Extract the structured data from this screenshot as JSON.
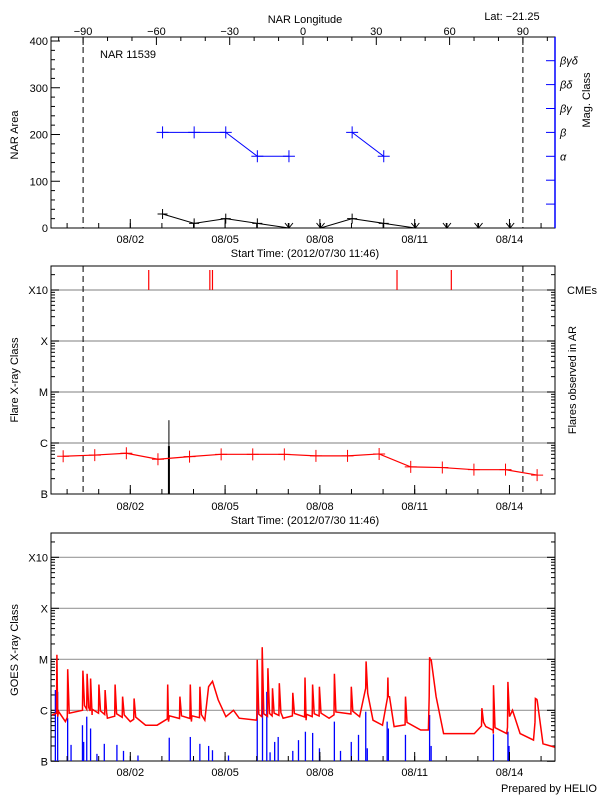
{
  "colors": {
    "area": "#000000",
    "mag_class": "#0000ff",
    "flare": "#ff0000",
    "cme": "#ff0000",
    "goes_flux": "#ff0000",
    "goes_events": "#0000ff",
    "grid": "#999999",
    "limb": "#000000"
  },
  "header": {
    "lat_label": "Lat: −21.25",
    "region_title": "NAR 11539",
    "credit": "Prepared by HELIO"
  },
  "time_axis": {
    "xlabel": "Start Time: (2012/07/30 11:46)",
    "xlim": [
      "07/30 11:46",
      "08/15 10:35"
    ],
    "ticks": [
      "08/02",
      "08/05",
      "08/08",
      "08/11",
      "08/14"
    ]
  },
  "chart_data": [
    {
      "type": "line",
      "title": "NAR 11539",
      "xlabel": "Start Time: (2012/07/30 11:46)",
      "ylabel": "NAR Area",
      "ylim": [
        0,
        400
      ],
      "yticks": [
        "0",
        "100",
        "200",
        "300",
        "400"
      ],
      "top_axis": {
        "label": "NAR Longitude",
        "ticks": [
          "−90",
          "−60",
          "−30",
          "0",
          "30",
          "60",
          "90"
        ],
        "tick_values": [
          -90,
          -60,
          -30,
          0,
          30,
          60,
          90
        ],
        "limb_longitudes": [
          -90,
          90
        ]
      },
      "area": {
        "x": [
          "08/03 00:30",
          "08/04 00:30",
          "08/05 00:30",
          "08/06 00:30",
          "08/07 00:30",
          "08/08 00:30",
          "08/09 00:30",
          "08/10 00:30",
          "08/11 00:30",
          "08/12 00:30",
          "08/13 00:30",
          "08/14 00:30"
        ],
        "values": [
          30,
          10,
          20,
          10,
          0,
          0,
          20,
          10,
          0,
          0,
          0,
          0
        ]
      },
      "mag_class": {
        "y2label": "Mag. Class",
        "levels": [
          "α",
          "β",
          "βγ",
          "βδ",
          "βγδ"
        ],
        "segments": [
          {
            "x": [
              "08/03 00:30",
              "08/04 00:30",
              "08/05 00:30",
              "08/06 00:30",
              "08/07 00:30"
            ],
            "values": [
              "β",
              "β",
              "β",
              "α",
              "α"
            ]
          },
          {
            "x": [
              "08/09 00:30",
              "08/10 00:30"
            ],
            "values": [
              "β",
              "α"
            ]
          }
        ]
      }
    },
    {
      "type": "line",
      "xlabel": "Start Time: (2012/07/30 11:46)",
      "ylabel": "Flare X-ray Class",
      "y2label": "Flares observed in AR",
      "yscale": "log",
      "ylim": [
        1e-07,
        0.003
      ],
      "yticks": [
        "B",
        "C",
        "M",
        "X",
        "X10"
      ],
      "cme_label": "CMEs",
      "background": {
        "x": [
          "07/30 21:00",
          "07/31 21:00",
          "08/01 21:00",
          "08/02 21:00",
          "08/03 21:00",
          "08/04 21:00",
          "08/05 21:00",
          "08/06 21:00",
          "08/07 21:00",
          "08/08 21:00",
          "08/09 21:00",
          "08/10 21:00",
          "08/11 21:00",
          "08/12 21:00",
          "08/13 21:00",
          "08/14 21:00"
        ],
        "values": [
          5.5e-07,
          5.8e-07,
          6.3e-07,
          4.8e-07,
          5.4e-07,
          6e-07,
          6e-07,
          6e-07,
          5.6e-07,
          5.6e-07,
          6.1e-07,
          3.4e-07,
          3.3e-07,
          3e-07,
          3e-07,
          2.35e-07
        ]
      },
      "flares": [
        {
          "x": "08/03 05:20",
          "value": 2.8e-06
        },
        {
          "x": "08/03 05:20",
          "value": 8.7e-07
        }
      ],
      "cmes": [
        "08/02 14:00",
        "08/04 12:25",
        "08/04 14:25",
        "08/10 10:35",
        "08/12 03:50"
      ]
    },
    {
      "type": "line",
      "ylabel": "GOES X-ray Class",
      "yscale": "log",
      "ylim": [
        1e-07,
        0.003
      ],
      "yticks": [
        "B",
        "C",
        "M",
        "X",
        "X10"
      ],
      "flux_background": [
        [
          "07/30 12:30",
          8.1e-07
        ],
        [
          "07/30 16:50",
          7.5e-07
        ],
        [
          "07/30 22:40",
          6e-07
        ],
        [
          "07/31 11:40",
          1e-06
        ],
        [
          "07/31 19:00",
          8.1e-07
        ],
        [
          "08/01 06:35",
          7e-07
        ],
        [
          "08/02 00:00",
          6e-07
        ],
        [
          "08/02 11:35",
          5.1e-07
        ],
        [
          "08/02 20:20",
          5.1e-07
        ],
        [
          "08/03 05:00",
          6e-07
        ],
        [
          "08/03 22:25",
          6e-07
        ],
        [
          "08/04 08:35",
          6.4e-07
        ],
        [
          "08/04 11:30",
          2.9e-06
        ],
        [
          "08/04 14:25",
          3.7e-06
        ],
        [
          "08/04 18:45",
          1.6e-06
        ],
        [
          "08/05 00:35",
          7.5e-07
        ],
        [
          "08/05 06:25",
          1e-06
        ],
        [
          "08/05 10:45",
          7e-07
        ],
        [
          "08/05 23:50",
          6.4e-07
        ],
        [
          "08/06 20:05",
          7e-07
        ],
        [
          "08/07 13:30",
          6.4e-07
        ],
        [
          "08/08 07:00",
          7e-07
        ],
        [
          "08/09 06:10",
          7.5e-07
        ],
        [
          "08/09 10:30",
          2.5e-06
        ],
        [
          "08/09 16:20",
          6.4e-07
        ],
        [
          "08/09 23:35",
          5.1e-07
        ],
        [
          "08/10 04:00",
          1.86e-06
        ],
        [
          "08/10 08:20",
          4.8e-07
        ],
        [
          "08/11 04:35",
          4.1e-07
        ],
        [
          "08/11 10:25",
          4.1e-07
        ],
        [
          "08/11 11:50",
          9.8e-06
        ],
        [
          "08/11 16:15",
          1.86e-06
        ],
        [
          "08/11 22:00",
          3.5e-07
        ],
        [
          "08/12 21:15",
          3.5e-07
        ],
        [
          "08/13 06:00",
          4.8e-07
        ],
        [
          "08/13 11:45",
          3.5e-07
        ],
        [
          "08/13 21:55",
          3.5e-07
        ],
        [
          "08/14 02:20",
          1e-06
        ],
        [
          "08/14 08:05",
          3.5e-07
        ],
        [
          "08/14 18:15",
          2.6e-07
        ],
        [
          "08/14 21:10",
          1.5e-06
        ],
        [
          "08/15 01:30",
          2.2e-07
        ],
        [
          "08/15 10:15",
          1.9e-07
        ]
      ],
      "flux_peaks": [
        [
          "07/30 16:15",
          1.23e-05
        ],
        [
          "07/31 00:25",
          6.4e-06
        ],
        [
          "07/31 12:00",
          6e-06
        ],
        [
          "07/31 15:10",
          5.2e-06
        ],
        [
          "07/31 17:50",
          4.2e-06
        ],
        [
          "08/01 00:10",
          3.2e-06
        ],
        [
          "08/01 04:50",
          2.5e-06
        ],
        [
          "08/01 12:25",
          3.2e-06
        ],
        [
          "08/01 18:10",
          1.86e-06
        ],
        [
          "08/02 02:55",
          1.7e-06
        ],
        [
          "08/03 04:25",
          3.2e-06
        ],
        [
          "08/03 13:40",
          1.86e-06
        ],
        [
          "08/03 21:35",
          3.2e-06
        ],
        [
          "08/04 04:50",
          2.9e-06
        ],
        [
          "08/06 00:25",
          9.8e-06
        ],
        [
          "08/06 04:10",
          1.73e-05
        ],
        [
          "08/06 08:30",
          6.7e-06
        ],
        [
          "08/06 12:00",
          2.7e-06
        ],
        [
          "08/06 17:10",
          3.4e-06
        ],
        [
          "08/07 03:25",
          2.2e-06
        ],
        [
          "08/07 12:40",
          4.4e-06
        ],
        [
          "08/07 18:30",
          3.2e-06
        ],
        [
          "08/07 23:40",
          2.9e-06
        ],
        [
          "08/08 11:00",
          5.2e-06
        ],
        [
          "08/08 23:50",
          2.9e-06
        ],
        [
          "08/09 11:05",
          9.1e-06
        ],
        [
          "08/10 03:40",
          4.4e-06
        ],
        [
          "08/10 17:00",
          1.86e-06
        ],
        [
          "08/11 11:20",
          1.1e-05
        ],
        [
          "08/13 03:05",
          1.1e-06
        ],
        [
          "08/13 11:50",
          3.1e-06
        ],
        [
          "08/13 22:50",
          3.6e-06
        ],
        [
          "08/14 19:40",
          1.7e-06
        ]
      ],
      "events": [
        [
          "07/30 15:05",
          2.5e-06
        ],
        [
          "07/30 16:50",
          2.3e-06
        ],
        [
          "07/31 00:25",
          7e-07
        ],
        [
          "07/31 03:00",
          2.1e-07
        ],
        [
          "07/31 11:40",
          5.1e-07
        ],
        [
          "07/31 12:35",
          2.4e-07
        ],
        [
          "07/31 14:55",
          7.5e-07
        ],
        [
          "07/31 17:50",
          4.4e-07
        ],
        [
          "07/31 22:40",
          1.4e-07
        ],
        [
          "08/01 04:15",
          2.2e-07
        ],
        [
          "08/01 13:50",
          2.1e-07
        ],
        [
          "08/01 18:50",
          1.6e-07
        ],
        [
          "08/02 05:50",
          1.3e-07
        ],
        [
          "08/03 05:35",
          2.9e-07
        ],
        [
          "08/03 21:35",
          3e-07
        ],
        [
          "08/04 04:50",
          2.2e-07
        ],
        [
          "08/04 11:30",
          2e-07
        ],
        [
          "08/04 14:25",
          1.65e-07
        ],
        [
          "08/05 02:35",
          1.3e-07
        ],
        [
          "08/06 00:25",
          2.2e-06
        ],
        [
          "08/06 04:25",
          3.8e-06
        ],
        [
          "08/06 07:40",
          2.3e-06
        ],
        [
          "08/06 10:10",
          1.5e-07
        ],
        [
          "08/06 13:40",
          2.4e-07
        ],
        [
          "08/06 16:20",
          3e-07
        ],
        [
          "08/07 03:25",
          1.6e-07
        ],
        [
          "08/07 07:45",
          2.6e-07
        ],
        [
          "08/07 13:00",
          3.8e-07
        ],
        [
          "08/07 18:30",
          3.6e-07
        ],
        [
          "08/07 23:40",
          1.8e-07
        ],
        [
          "08/08 11:00",
          6e-07
        ],
        [
          "08/08 15:40",
          1.6e-07
        ],
        [
          "08/08 23:50",
          2.4e-07
        ],
        [
          "08/09 05:20",
          3.3e-07
        ],
        [
          "08/09 10:50",
          9.4e-07
        ],
        [
          "08/09 12:00",
          1.8e-07
        ],
        [
          "08/10 03:05",
          6e-07
        ],
        [
          "08/10 04:00",
          4.4e-07
        ],
        [
          "08/10 17:00",
          3.3e-07
        ],
        [
          "08/11 11:20",
          8.1e-07
        ],
        [
          "08/11 12:30",
          2e-07
        ],
        [
          "08/13 11:50",
          3.4e-07
        ],
        [
          "08/13 22:50",
          3.8e-07
        ],
        [
          "08/13 23:40",
          2e-07
        ]
      ]
    }
  ]
}
